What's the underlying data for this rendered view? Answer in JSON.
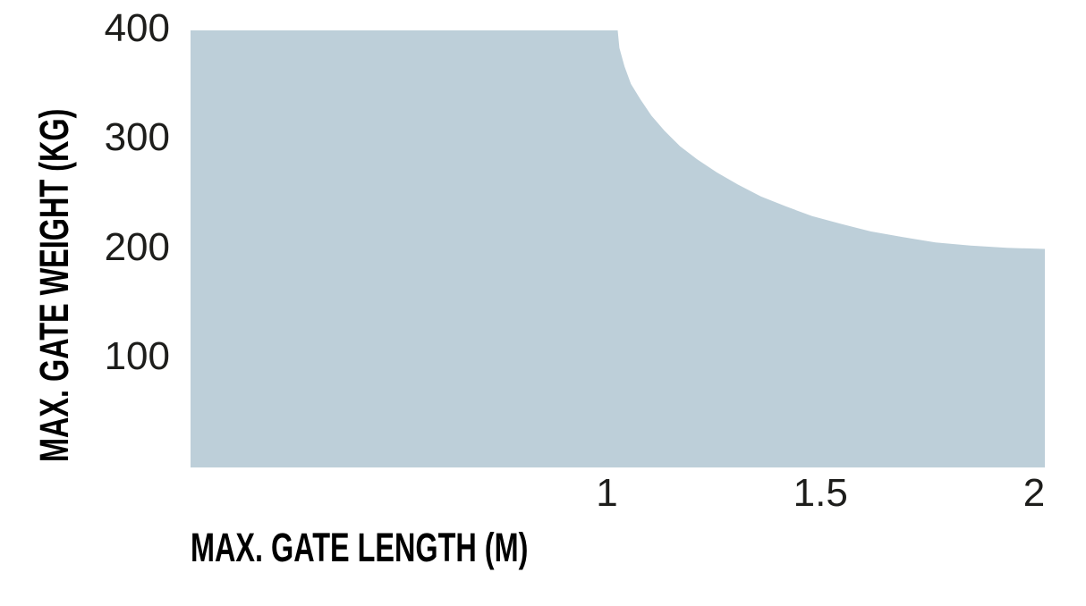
{
  "chart_data": {
    "type": "area",
    "title": "",
    "xlabel": "MAX. GATE LENGTH (M)",
    "ylabel": "MAX. GATE WEIGHT (KG)",
    "xlim": [
      0,
      2
    ],
    "ylim": [
      0,
      400
    ],
    "xticks": [
      1,
      1.5,
      2
    ],
    "xtick_labels": [
      "1",
      "1.5",
      "2"
    ],
    "yticks": [
      400,
      300,
      200,
      100
    ],
    "ytick_labels": [
      "400",
      "300",
      "200",
      "100"
    ],
    "grid": false,
    "legend": false,
    "axis_lines": false,
    "area_color": "#BDCFD9",
    "background_color": "#FFFFFF",
    "text_color": "#1D1D1B",
    "series": [
      {
        "name": "max-gate-weight-envelope",
        "description": "Allowed region: max gate weight (kg) vs gate length (m); flat at 400 kg up to 1 m, curving down to 200 kg at 2 m",
        "fill_to": 0,
        "points": [
          [
            0,
            400
          ],
          [
            1,
            400
          ],
          [
            1.004,
            384
          ],
          [
            1.016,
            367
          ],
          [
            1.031,
            351
          ],
          [
            1.053,
            337
          ],
          [
            1.079,
            322
          ],
          [
            1.11,
            308
          ],
          [
            1.146,
            294
          ],
          [
            1.186,
            282
          ],
          [
            1.232,
            270
          ],
          [
            1.281,
            259
          ],
          [
            1.335,
            248
          ],
          [
            1.393,
            239
          ],
          [
            1.455,
            230
          ],
          [
            1.522,
            223
          ],
          [
            1.592,
            216
          ],
          [
            1.666,
            211
          ],
          [
            1.744,
            206
          ],
          [
            1.826,
            203
          ],
          [
            1.911,
            201
          ],
          [
            2,
            200
          ]
        ]
      }
    ]
  }
}
